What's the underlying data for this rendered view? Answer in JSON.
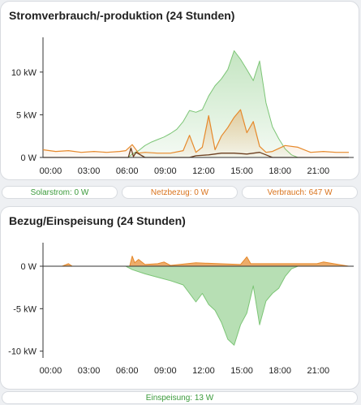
{
  "cards": {
    "power": {
      "title": "Stromverbrauch/-produktion (24 Stunden)",
      "summary": {
        "solar": "Solarstrom: 0 W",
        "grid": "Netzbezug: 0 W",
        "consumption": "Verbrauch: 647 W"
      }
    },
    "exchange": {
      "title": "Bezug/Einspeisung (24 Stunden)",
      "summary": {
        "feed_in": "Einspeisung: 13 W"
      }
    }
  },
  "colors": {
    "solar": "#7cc576",
    "grid": "#e6892b",
    "consumption": "#e6892b",
    "battery": "#6b3e1f",
    "feed_in": "#4caf50"
  },
  "chart_data": [
    {
      "type": "area",
      "title": "Stromverbrauch/-produktion (24 Stunden)",
      "x_unit": "hour of day",
      "x_ticks": [
        "00:00",
        "03:00",
        "06:00",
        "09:00",
        "12:00",
        "15:00",
        "18:00",
        "21:00"
      ],
      "y_ticks": [
        "0 W",
        "5 kW",
        "10 kW"
      ],
      "ylim": [
        0,
        13.5
      ],
      "y_unit": "kW",
      "series": [
        {
          "key": "solar",
          "x": [
            0,
            6.7,
            7.0,
            7.5,
            8.0,
            8.5,
            9.0,
            9.5,
            10.0,
            10.5,
            11.0,
            11.5,
            12.0,
            12.5,
            13.0,
            13.5,
            14.0,
            14.5,
            15.0,
            15.5,
            16.0,
            16.5,
            17.0,
            17.5,
            18.0,
            18.5,
            19.0,
            19.5,
            20.0,
            24
          ],
          "values": [
            0,
            0,
            0.4,
            0.8,
            1.4,
            1.8,
            2.1,
            2.4,
            2.8,
            3.3,
            4.2,
            5.5,
            5.3,
            5.6,
            7.2,
            8.4,
            9.2,
            10.3,
            12.5,
            11.5,
            10.3,
            9.0,
            11.3,
            6.4,
            3.6,
            2.2,
            1.0,
            0.3,
            0,
            0
          ]
        },
        {
          "key": "consumption",
          "x": [
            0,
            1.0,
            2.0,
            3.0,
            4.0,
            5.0,
            6.0,
            6.5,
            7.0,
            7.5,
            8.0,
            9.0,
            10.0,
            11.0,
            11.5,
            12.0,
            12.5,
            13.0,
            13.5,
            14.0,
            14.5,
            15.0,
            15.5,
            16.0,
            16.5,
            17.0,
            17.5,
            18.0,
            19.0,
            20.0,
            21.0,
            22.0,
            23.0,
            24.0
          ],
          "values": [
            0.9,
            0.7,
            0.8,
            0.6,
            0.7,
            0.6,
            0.7,
            0.8,
            1.5,
            0.5,
            0.6,
            0.5,
            0.5,
            0.8,
            2.6,
            0.6,
            1.2,
            4.9,
            0.9,
            2.5,
            3.5,
            4.7,
            5.6,
            2.9,
            4.2,
            1.3,
            0.6,
            0.7,
            1.4,
            1.2,
            0.6,
            0.7,
            0.6,
            0.6
          ]
        },
        {
          "key": "battery",
          "x": [
            0,
            6.7,
            6.9,
            7.1,
            7.3,
            8.0,
            11.5,
            12.0,
            13.0,
            14.0,
            15.0,
            16.0,
            17.0,
            17.5,
            18.0,
            24
          ],
          "values": [
            0,
            0,
            1.1,
            0.1,
            0.6,
            0,
            0,
            0.2,
            0.3,
            0.5,
            0.5,
            0.4,
            0.6,
            0.3,
            0,
            0
          ]
        }
      ]
    },
    {
      "type": "area",
      "title": "Bezug/Einspeisung (24 Stunden)",
      "x_unit": "hour of day",
      "x_ticks": [
        "00:00",
        "03:00",
        "06:00",
        "09:00",
        "12:00",
        "15:00",
        "18:00",
        "21:00"
      ],
      "y_ticks": [
        "0 W",
        "-5 kW",
        "-10 kW"
      ],
      "ylim": [
        -10.8,
        2.2
      ],
      "y_unit": "kW",
      "series": [
        {
          "key": "grid_import",
          "x": [
            0,
            1.5,
            2.0,
            2.3,
            6.8,
            7.0,
            7.2,
            7.5,
            8.0,
            9.0,
            9.5,
            10.0,
            12.0,
            15.5,
            16.0,
            16.3,
            21.5,
            22.0,
            24
          ],
          "values": [
            0,
            0,
            0.3,
            0,
            0,
            1.2,
            0.4,
            0.8,
            0.2,
            0.3,
            0.5,
            0.1,
            0.4,
            0.2,
            1.1,
            0.3,
            0.3,
            0.5,
            0
          ]
        },
        {
          "key": "feed_in",
          "x": [
            0,
            6.5,
            7.0,
            8.0,
            9.0,
            10.0,
            11.0,
            12.0,
            12.5,
            13.0,
            13.5,
            14.0,
            14.5,
            15.0,
            15.5,
            16.0,
            16.5,
            17.0,
            17.5,
            18.0,
            18.5,
            19.0,
            19.5,
            20.0,
            24
          ],
          "values": [
            0,
            0,
            -0.4,
            -0.9,
            -1.3,
            -1.7,
            -2.2,
            -4.2,
            -3.2,
            -4.5,
            -5.2,
            -6.6,
            -8.6,
            -9.3,
            -6.9,
            -5.5,
            -2.3,
            -6.9,
            -4.1,
            -3.2,
            -2.6,
            -1.2,
            -0.3,
            0,
            0
          ]
        }
      ]
    }
  ]
}
